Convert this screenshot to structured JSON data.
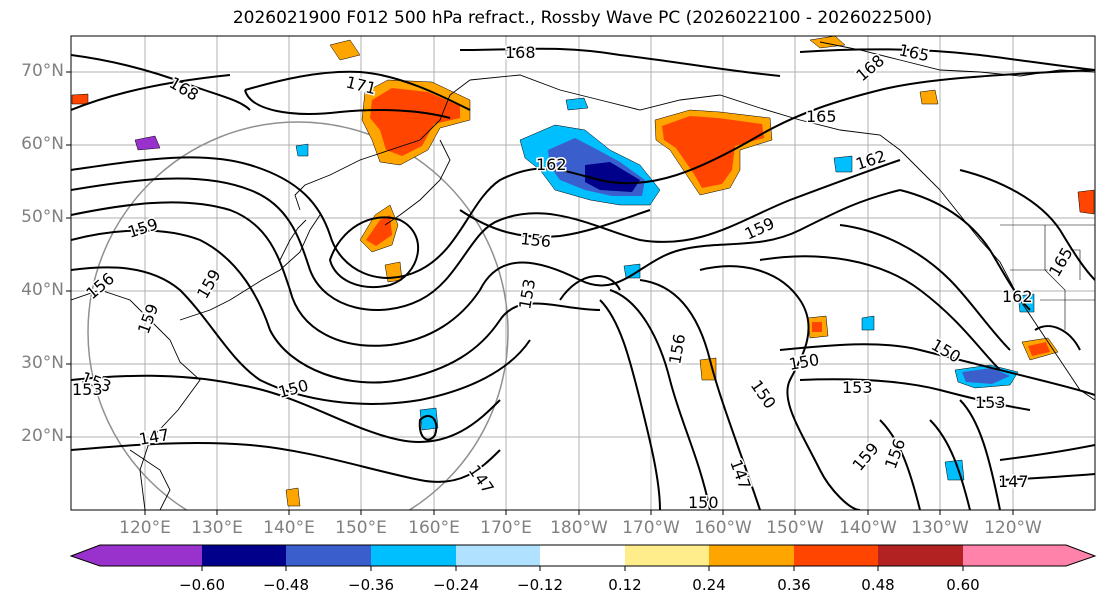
{
  "title": "2026021900 F012 500 hPa refract., Rossby Wave PC (2026022100 - 2026022500)",
  "lat_labels": [
    "70°N",
    "60°N",
    "50°N",
    "40°N",
    "30°N",
    "20°N"
  ],
  "lon_labels": [
    "120°E",
    "130°E",
    "140°E",
    "150°E",
    "160°E",
    "170°E",
    "180°W",
    "170°W",
    "160°W",
    "150°W",
    "140°W",
    "130°W",
    "120°W"
  ],
  "contour_labels": [
    "168",
    "165",
    "171",
    "168",
    "168",
    "165",
    "162",
    "162",
    "159",
    "156",
    "159",
    "156",
    "159",
    "159",
    "153",
    "153",
    "153",
    "150",
    "150",
    "150",
    "150",
    "147",
    "147",
    "147",
    "147",
    "153",
    "156",
    "159",
    "156",
    "150",
    "162",
    "165",
    "153"
  ],
  "colorbar": {
    "tick_labels": [
      "−0.60",
      "−0.48",
      "−0.36",
      "−0.24",
      "−0.12",
      "0.12",
      "0.24",
      "0.36",
      "0.48",
      "0.60"
    ],
    "colors": [
      "#9932cc",
      "#00008b",
      "#3a5fcd",
      "#00bfff",
      "#b0e2ff",
      "#ffffff",
      "#ffec8b",
      "#ffa500",
      "#ff4500",
      "#b22222",
      "#ff82ab"
    ]
  },
  "anomaly_colors": {
    "strong_positive": "#ff4500",
    "positive": "#ffa500",
    "weak_negative": "#00bfff",
    "negative": "#3a5fcd",
    "strong_negative": "#00008b"
  }
}
